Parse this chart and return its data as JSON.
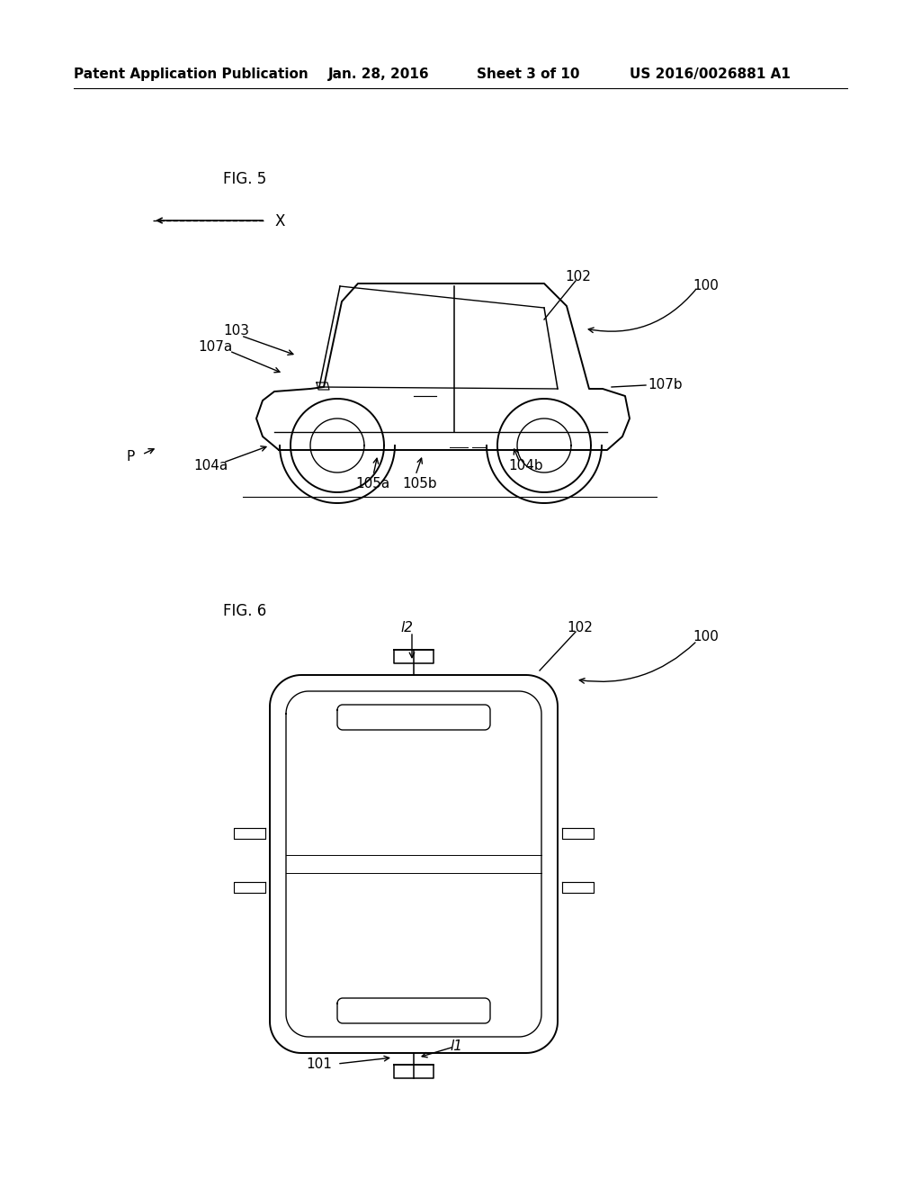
{
  "background_color": "#ffffff",
  "header_text": "Patent Application Publication",
  "header_date": "Jan. 28, 2016",
  "header_sheet": "Sheet 3 of 10",
  "header_patent": "US 2016/0026881 A1",
  "fig5_label": "FIG. 5",
  "fig6_label": "FIG. 6"
}
